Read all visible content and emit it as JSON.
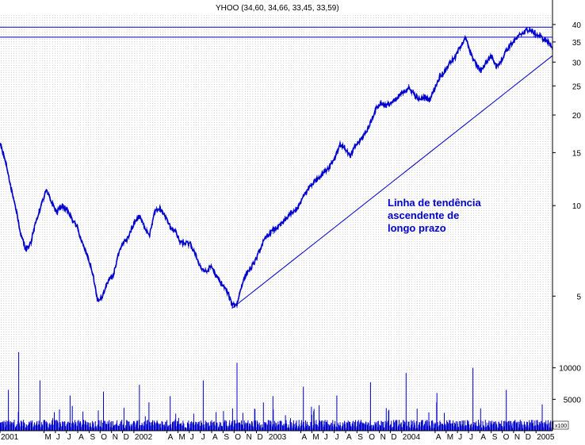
{
  "chart_data": {
    "type": "line",
    "title": "YHOO (34,60, 34,66, 33,45, 33,59)",
    "annotation": [
      "Linha de tendência",
      "ascendente de",
      "longo prazo"
    ],
    "volume_scale_label": "x100",
    "price_axis": {
      "ticks": [
        5,
        10,
        15,
        20,
        25,
        30,
        35,
        40
      ],
      "ylim": [
        3.5,
        43
      ],
      "scale": "log"
    },
    "volume_axis": {
      "ticks": [
        "5000",
        "10000"
      ],
      "ylim": [
        0,
        14000
      ]
    },
    "x_axis": {
      "start": "2001-01-01",
      "end": "2005-02-15",
      "month_labels": [
        {
          "date": "2001-01-01",
          "label": "2001"
        },
        {
          "date": "2001-05-01",
          "label": "M"
        },
        {
          "date": "2001-06-01",
          "label": "J"
        },
        {
          "date": "2001-07-01",
          "label": "J"
        },
        {
          "date": "2001-08-01",
          "label": "A"
        },
        {
          "date": "2001-09-01",
          "label": "S"
        },
        {
          "date": "2001-10-01",
          "label": "O"
        },
        {
          "date": "2001-11-01",
          "label": "N"
        },
        {
          "date": "2001-12-01",
          "label": "D"
        },
        {
          "date": "2002-01-01",
          "label": "2002"
        },
        {
          "date": "2002-04-01",
          "label": "A"
        },
        {
          "date": "2002-05-01",
          "label": "M"
        },
        {
          "date": "2002-06-01",
          "label": "J"
        },
        {
          "date": "2002-07-01",
          "label": "J"
        },
        {
          "date": "2002-08-01",
          "label": "A"
        },
        {
          "date": "2002-09-01",
          "label": "S"
        },
        {
          "date": "2002-10-01",
          "label": "O"
        },
        {
          "date": "2002-11-01",
          "label": "N"
        },
        {
          "date": "2002-12-01",
          "label": "D"
        },
        {
          "date": "2003-01-01",
          "label": "2003"
        },
        {
          "date": "2003-04-01",
          "label": "A"
        },
        {
          "date": "2003-05-01",
          "label": "M"
        },
        {
          "date": "2003-06-01",
          "label": "J"
        },
        {
          "date": "2003-07-01",
          "label": "J"
        },
        {
          "date": "2003-08-01",
          "label": "A"
        },
        {
          "date": "2003-09-01",
          "label": "S"
        },
        {
          "date": "2003-10-01",
          "label": "O"
        },
        {
          "date": "2003-11-01",
          "label": "N"
        },
        {
          "date": "2003-12-01",
          "label": "D"
        },
        {
          "date": "2004-01-01",
          "label": "2004"
        },
        {
          "date": "2004-04-01",
          "label": "A"
        },
        {
          "date": "2004-05-01",
          "label": "M"
        },
        {
          "date": "2004-06-01",
          "label": "J"
        },
        {
          "date": "2004-07-01",
          "label": "J"
        },
        {
          "date": "2004-08-01",
          "label": "A"
        },
        {
          "date": "2004-09-01",
          "label": "S"
        },
        {
          "date": "2004-10-01",
          "label": "O"
        },
        {
          "date": "2004-11-01",
          "label": "N"
        },
        {
          "date": "2004-12-01",
          "label": "D"
        },
        {
          "date": "2005-01-01",
          "label": "2005"
        }
      ]
    },
    "series": [
      {
        "values": [
          [
            "2001-01-01",
            16.0
          ],
          [
            "2001-01-15",
            14.2
          ],
          [
            "2001-01-30",
            11.5
          ],
          [
            "2001-02-12",
            10.0
          ],
          [
            "2001-02-26",
            8.0
          ],
          [
            "2001-03-12",
            7.2
          ],
          [
            "2001-03-26",
            7.5
          ],
          [
            "2001-04-09",
            8.8
          ],
          [
            "2001-04-23",
            10.0
          ],
          [
            "2001-05-07",
            11.2
          ],
          [
            "2001-05-21",
            10.3
          ],
          [
            "2001-06-04",
            9.5
          ],
          [
            "2001-06-18",
            10.0
          ],
          [
            "2001-07-02",
            9.7
          ],
          [
            "2001-07-16",
            9.0
          ],
          [
            "2001-07-30",
            8.5
          ],
          [
            "2001-08-13",
            7.5
          ],
          [
            "2001-08-27",
            6.8
          ],
          [
            "2001-09-10",
            6.0
          ],
          [
            "2001-09-24",
            4.8
          ],
          [
            "2001-10-08",
            5.0
          ],
          [
            "2001-10-22",
            5.6
          ],
          [
            "2001-11-05",
            5.8
          ],
          [
            "2001-11-19",
            6.8
          ],
          [
            "2001-12-03",
            7.5
          ],
          [
            "2001-12-17",
            7.8
          ],
          [
            "2002-01-02",
            8.8
          ],
          [
            "2002-01-16",
            9.2
          ],
          [
            "2002-01-30",
            8.5
          ],
          [
            "2002-02-13",
            8.0
          ],
          [
            "2002-02-27",
            9.5
          ],
          [
            "2002-03-13",
            9.8
          ],
          [
            "2002-03-27",
            9.2
          ],
          [
            "2002-04-10",
            8.5
          ],
          [
            "2002-04-24",
            8.2
          ],
          [
            "2002-05-08",
            7.5
          ],
          [
            "2002-05-22",
            7.5
          ],
          [
            "2002-06-05",
            7.4
          ],
          [
            "2002-06-19",
            6.8
          ],
          [
            "2002-07-03",
            6.2
          ],
          [
            "2002-07-17",
            6.0
          ],
          [
            "2002-07-31",
            6.3
          ],
          [
            "2002-08-14",
            5.8
          ],
          [
            "2002-08-28",
            5.5
          ],
          [
            "2002-09-11",
            5.2
          ],
          [
            "2002-09-25",
            4.7
          ],
          [
            "2002-10-09",
            4.7
          ],
          [
            "2002-10-23",
            5.5
          ],
          [
            "2002-11-06",
            6.0
          ],
          [
            "2002-11-20",
            6.3
          ],
          [
            "2002-12-04",
            6.8
          ],
          [
            "2002-12-18",
            7.5
          ],
          [
            "2003-01-02",
            8.0
          ],
          [
            "2003-01-16",
            8.3
          ],
          [
            "2003-01-30",
            8.5
          ],
          [
            "2003-02-13",
            8.8
          ],
          [
            "2003-02-27",
            9.3
          ],
          [
            "2003-03-13",
            9.5
          ],
          [
            "2003-03-27",
            10.0
          ],
          [
            "2003-04-10",
            10.8
          ],
          [
            "2003-04-24",
            11.5
          ],
          [
            "2003-05-08",
            12.0
          ],
          [
            "2003-05-22",
            12.5
          ],
          [
            "2003-06-05",
            13.0
          ],
          [
            "2003-06-19",
            13.5
          ],
          [
            "2003-07-03",
            14.5
          ],
          [
            "2003-07-17",
            16.0
          ],
          [
            "2003-07-31",
            15.5
          ],
          [
            "2003-08-14",
            14.5
          ],
          [
            "2003-08-28",
            15.8
          ],
          [
            "2003-09-11",
            16.5
          ],
          [
            "2003-09-25",
            17.5
          ],
          [
            "2003-10-09",
            19.0
          ],
          [
            "2003-10-23",
            21.0
          ],
          [
            "2003-11-06",
            22.0
          ],
          [
            "2003-11-20",
            21.5
          ],
          [
            "2003-12-04",
            22.0
          ],
          [
            "2003-12-18",
            22.5
          ],
          [
            "2004-01-05",
            24.0
          ],
          [
            "2004-01-20",
            24.5
          ],
          [
            "2004-02-04",
            23.5
          ],
          [
            "2004-02-18",
            22.5
          ],
          [
            "2004-03-03",
            23.0
          ],
          [
            "2004-03-17",
            22.5
          ],
          [
            "2004-03-31",
            24.5
          ],
          [
            "2004-04-14",
            27.0
          ],
          [
            "2004-04-28",
            28.0
          ],
          [
            "2004-05-12",
            30.0
          ],
          [
            "2004-05-26",
            31.0
          ],
          [
            "2004-06-09",
            34.0
          ],
          [
            "2004-06-23",
            36.0
          ],
          [
            "2004-07-07",
            32.0
          ],
          [
            "2004-07-21",
            29.5
          ],
          [
            "2004-08-04",
            28.0
          ],
          [
            "2004-08-18",
            30.0
          ],
          [
            "2004-09-01",
            31.5
          ],
          [
            "2004-09-15",
            29.0
          ],
          [
            "2004-09-29",
            30.5
          ],
          [
            "2004-10-13",
            33.0
          ],
          [
            "2004-10-27",
            34.5
          ],
          [
            "2004-11-10",
            36.0
          ],
          [
            "2004-11-24",
            37.5
          ],
          [
            "2004-12-08",
            38.5
          ],
          [
            "2004-12-22",
            38.0
          ],
          [
            "2005-01-05",
            37.0
          ],
          [
            "2005-01-19",
            36.0
          ],
          [
            "2005-02-02",
            35.0
          ],
          [
            "2005-02-15",
            33.6
          ]
        ]
      }
    ],
    "resistance_lines": [
      39.2,
      36.3
    ],
    "trend_line": {
      "from": [
        "2002-09-25",
        4.55
      ],
      "to": [
        "2005-02-15",
        31.5
      ]
    },
    "volume_baseline": 1200,
    "volume_spikes": [
      [
        "2001-01-24",
        6500
      ],
      [
        "2001-02-21",
        12500
      ],
      [
        "2001-04-20",
        8000
      ],
      [
        "2001-07-11",
        5600
      ],
      [
        "2001-10-10",
        6200
      ],
      [
        "2002-01-16",
        7300
      ],
      [
        "2002-04-10",
        5500
      ],
      [
        "2002-07-09",
        8000
      ],
      [
        "2002-10-09",
        10800
      ],
      [
        "2002-10-20",
        6200
      ],
      [
        "2002-12-20",
        4500
      ],
      [
        "2003-01-15",
        5500
      ],
      [
        "2003-04-08",
        7000
      ],
      [
        "2003-07-08",
        5600
      ],
      [
        "2003-10-08",
        7700
      ],
      [
        "2003-11-20",
        3600
      ],
      [
        "2004-01-13",
        9200
      ],
      [
        "2004-04-06",
        6000
      ],
      [
        "2004-07-13",
        10000
      ],
      [
        "2004-10-12",
        6500
      ],
      [
        "2005-01-18",
        4200
      ]
    ],
    "colors": {
      "series": "#0000cc",
      "lines": "#0000cc",
      "text": "#0000cc",
      "axis_text": "#000000",
      "grid": "#a0a0a0",
      "frame": "#000000"
    },
    "grid": "vertical dotted"
  }
}
